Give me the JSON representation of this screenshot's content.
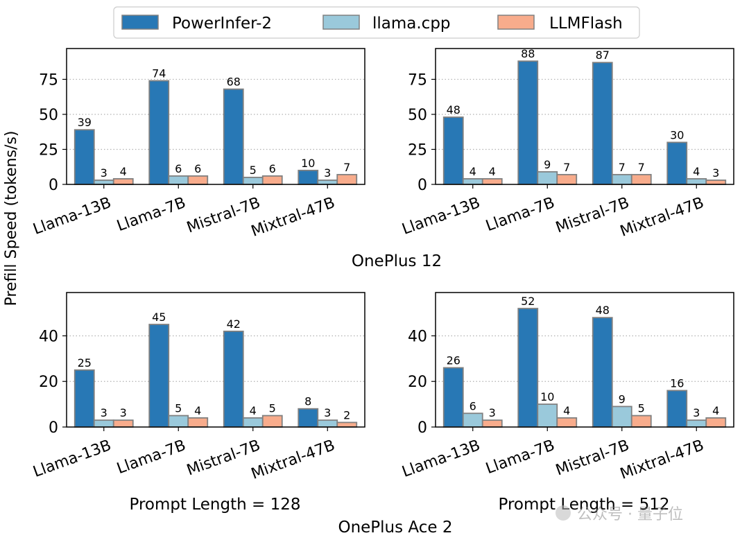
{
  "legend": {
    "entries": [
      {
        "name": "PowerInfer-2",
        "color": "#2878b5"
      },
      {
        "name": "llama.cpp",
        "color": "#9ac9db"
      },
      {
        "name": "LLMFlash",
        "color": "#f8ac8c"
      }
    ],
    "placement": "top-center"
  },
  "y_axis_label": "Prefill Speed (tokens/s)",
  "row_labels": [
    "OnePlus 12",
    "OnePlus Ace 2"
  ],
  "column_labels": [
    "Prompt Length = 128",
    "Prompt Length = 512"
  ],
  "watermark": "公众号 · 量子位",
  "chart_data": [
    {
      "type": "bar",
      "device": "OnePlus 12",
      "prompt_length": 128,
      "categories": [
        "Llama-13B",
        "Llama-7B",
        "Mistral-7B",
        "Mixtral-47B"
      ],
      "series": [
        {
          "name": "PowerInfer-2",
          "values": [
            39,
            74,
            68,
            10
          ]
        },
        {
          "name": "llama.cpp",
          "values": [
            3,
            6,
            5,
            3
          ]
        },
        {
          "name": "LLMFlash",
          "values": [
            4,
            6,
            6,
            7
          ]
        }
      ],
      "ylim": [
        0,
        97
      ],
      "yticks": [
        "0",
        "25",
        "50",
        "75"
      ],
      "grid": "y-dotted"
    },
    {
      "type": "bar",
      "device": "OnePlus 12",
      "prompt_length": 512,
      "categories": [
        "Llama-13B",
        "Llama-7B",
        "Mistral-7B",
        "Mixtral-47B"
      ],
      "series": [
        {
          "name": "PowerInfer-2",
          "values": [
            48,
            88,
            87,
            30
          ]
        },
        {
          "name": "llama.cpp",
          "values": [
            4,
            9,
            7,
            4
          ]
        },
        {
          "name": "LLMFlash",
          "values": [
            4,
            7,
            7,
            3
          ]
        }
      ],
      "ylim": [
        0,
        97
      ],
      "yticks": [
        "0",
        "25",
        "50",
        "75"
      ],
      "grid": "y-dotted"
    },
    {
      "type": "bar",
      "device": "OnePlus Ace 2",
      "prompt_length": 128,
      "categories": [
        "Llama-13B",
        "Llama-7B",
        "Mistral-7B",
        "Mixtral-47B"
      ],
      "series": [
        {
          "name": "PowerInfer-2",
          "values": [
            25,
            45,
            42,
            8
          ]
        },
        {
          "name": "llama.cpp",
          "values": [
            3,
            5,
            4,
            3
          ]
        },
        {
          "name": "LLMFlash",
          "values": [
            3,
            4,
            5,
            2
          ]
        }
      ],
      "ylim": [
        0,
        59
      ],
      "yticks": [
        "0",
        "20",
        "40"
      ],
      "grid": "y-dotted"
    },
    {
      "type": "bar",
      "device": "OnePlus Ace 2",
      "prompt_length": 512,
      "categories": [
        "Llama-13B",
        "Llama-7B",
        "Mistral-7B",
        "Mixtral-47B"
      ],
      "series": [
        {
          "name": "PowerInfer-2",
          "values": [
            26,
            52,
            48,
            16
          ]
        },
        {
          "name": "llama.cpp",
          "values": [
            6,
            10,
            9,
            3
          ]
        },
        {
          "name": "LLMFlash",
          "values": [
            3,
            4,
            5,
            4
          ]
        }
      ],
      "ylim": [
        0,
        59
      ],
      "yticks": [
        "0",
        "20",
        "40"
      ],
      "grid": "y-dotted"
    }
  ]
}
